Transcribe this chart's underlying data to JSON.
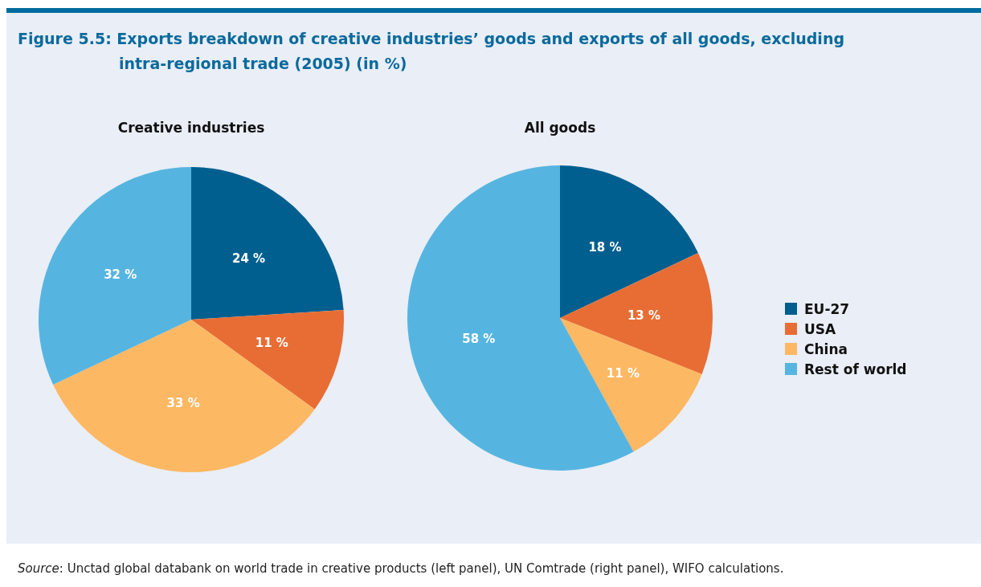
{
  "chart_data": [
    {
      "type": "other",
      "title": "Figure 5.5: Exports breakdown of creative industries’ goods and exports of all goods, excluding intra-regional trade (2005) (in %)",
      "annotations": [
        "Source: Unctad global databank on world trade in creative products (left panel), UN Comtrade (right panel), WIFO calculations."
      ]
    },
    {
      "type": "pie",
      "title": "Creative industries",
      "categories": [
        null,
        null,
        null,
        null
      ],
      "values": [
        24,
        11,
        33,
        32
      ],
      "colors": [
        "#005f8f",
        "#e86d34",
        "#fdb863",
        "#56b5e0"
      ],
      "value_labels": [
        "24 %",
        "11 %",
        "33 %",
        "32 %"
      ]
    },
    {
      "type": "pie",
      "title": "All goods",
      "categories": [
        "EU-27",
        "USA",
        "China",
        "Rest of world"
      ],
      "values": [
        18,
        13,
        11,
        58
      ],
      "colors": [
        "#005f8f",
        "#e86d34",
        "#fdb863",
        "#56b5e0"
      ],
      "value_labels": [
        "18 %",
        "13 %",
        "11 %",
        "58 %"
      ],
      "legend": "right"
    }
  ]
}
